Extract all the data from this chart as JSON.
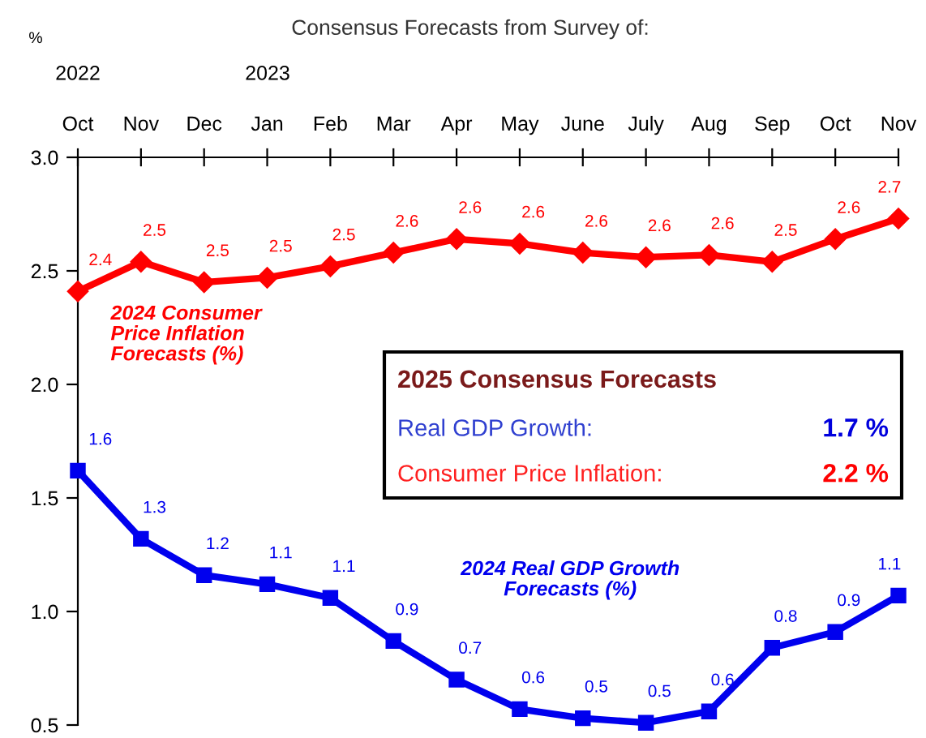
{
  "chart_data": {
    "type": "line",
    "title": "Consensus Forecasts from Survey of:",
    "categories": [
      "Oct",
      "Nov",
      "Dec",
      "Jan",
      "Feb",
      "Mar",
      "Apr",
      "May",
      "June",
      "July",
      "Aug",
      "Sep",
      "Oct",
      "Nov"
    ],
    "series": [
      {
        "name": "2024 Consumer Price Inflation Forecasts (%)",
        "color": "#ff0000",
        "marker": "diamond",
        "values": [
          2.41,
          2.54,
          2.45,
          2.47,
          2.52,
          2.58,
          2.64,
          2.62,
          2.58,
          2.56,
          2.57,
          2.54,
          2.64,
          2.73
        ],
        "value_labels": [
          "2.4",
          "2.5",
          "2.5",
          "2.5",
          "2.5",
          "2.6",
          "2.6",
          "2.6",
          "2.6",
          "2.6",
          "2.6",
          "2.5",
          "2.6",
          "2.7"
        ]
      },
      {
        "name": "2024 Real GDP Growth Forecasts (%)",
        "color": "#0000ee",
        "marker": "square",
        "values": [
          1.62,
          1.32,
          1.16,
          1.12,
          1.06,
          0.87,
          0.7,
          0.57,
          0.53,
          0.51,
          0.56,
          0.84,
          0.91,
          1.07
        ],
        "value_labels": [
          "1.6",
          "1.3",
          "1.2",
          "1.1",
          "1.1",
          "0.9",
          "0.7",
          "0.6",
          "0.5",
          "0.5",
          "0.6",
          "0.8",
          "0.9",
          "1.1"
        ]
      }
    ],
    "ylim": [
      0.5,
      3.0
    ],
    "yticks": [
      0.5,
      {
        "value": 1,
        "label": "1.0"
      },
      1.5,
      {
        "value": 2,
        "label": "2.0"
      },
      2.5,
      {
        "value": 3,
        "label": "3.0"
      }
    ],
    "grid": false,
    "legend": false,
    "line_style": "solid",
    "annotations": [
      "%",
      "2022",
      "2023",
      "2025 Consensus Forecasts",
      "Real GDP Growth:",
      "1.7 %",
      "Consumer Price Inflation:",
      "2.2 %"
    ]
  }
}
